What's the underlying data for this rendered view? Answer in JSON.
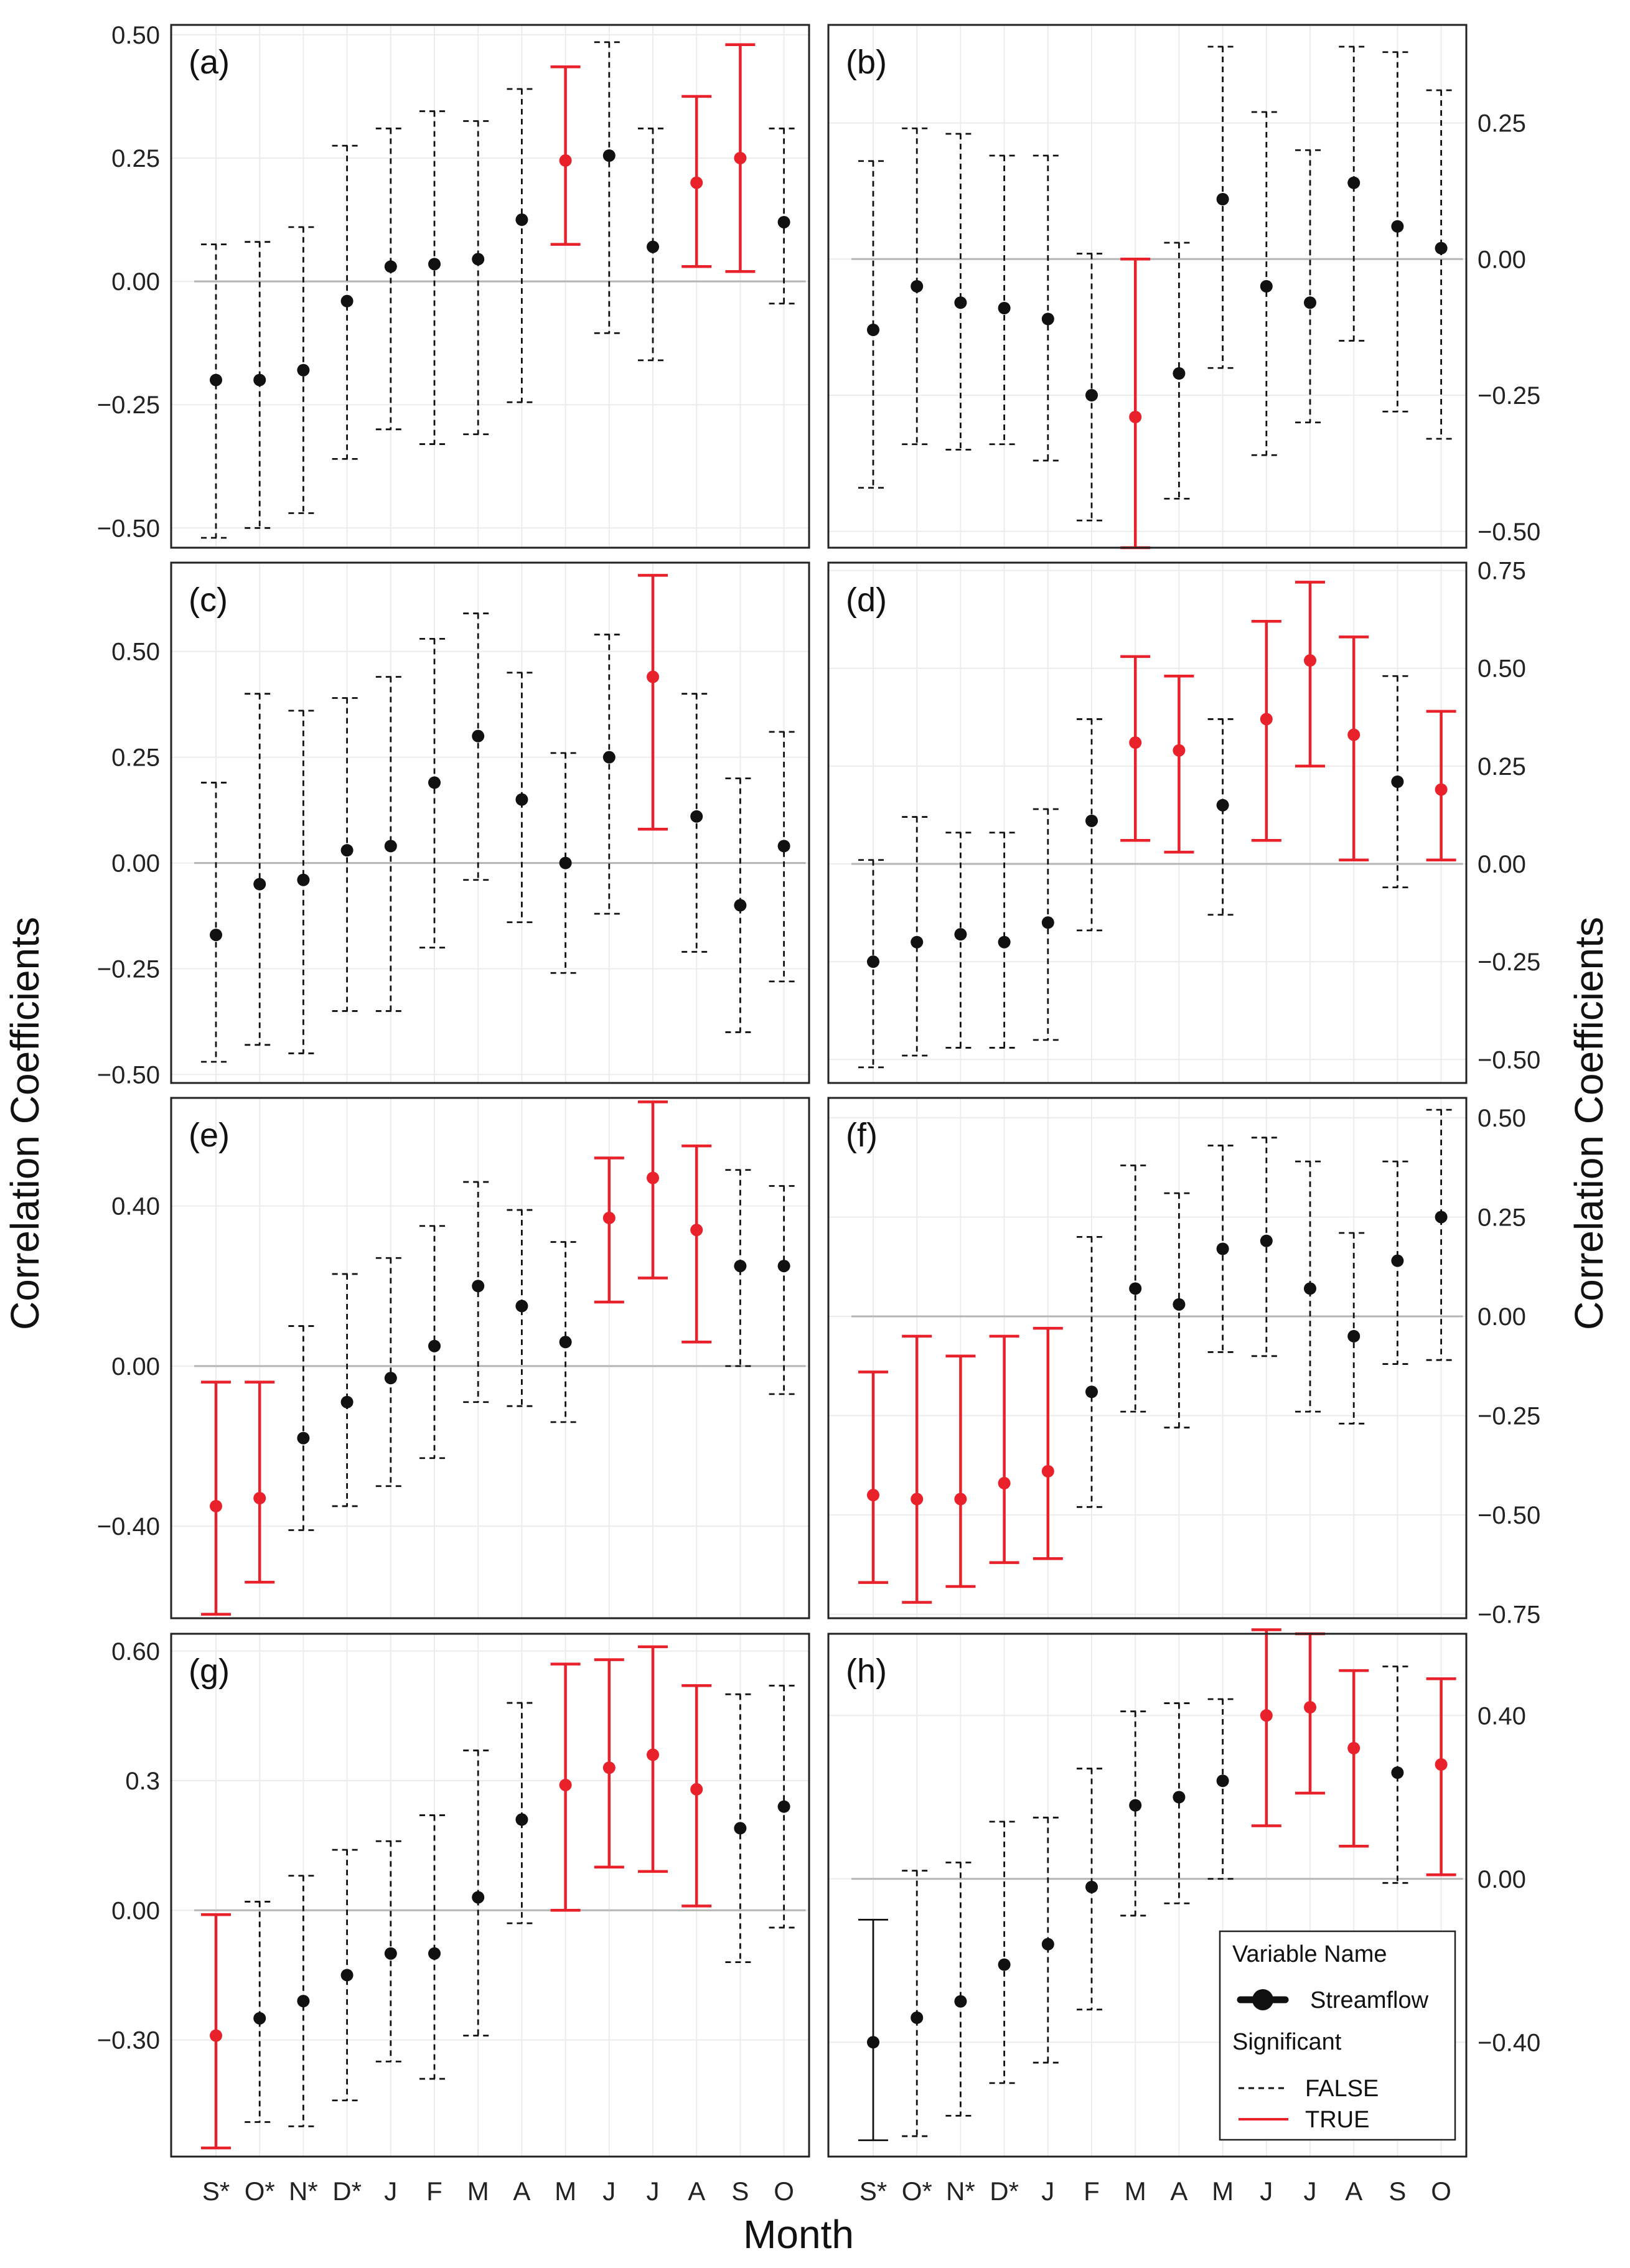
{
  "figure": {
    "y_axis_title_left": "Correlation Coefficients",
    "y_axis_title_right": "Correlation Coefficients",
    "x_axis_title": "Month"
  },
  "legend": {
    "title": "Variable Name",
    "variable": "Streamflow",
    "significance_title": "Significant",
    "false_label": "FALSE",
    "true_label": "TRUE",
    "false_color": "#111111",
    "true_color": "#e8212b"
  },
  "chart_data": [
    {
      "panel": "(a)",
      "type": "errorbar",
      "categories": [
        "S*",
        "O*",
        "N*",
        "D*",
        "J",
        "F",
        "M",
        "A",
        "M",
        "J",
        "J",
        "A",
        "S",
        "O"
      ],
      "ylim": [
        -0.54,
        0.52
      ],
      "yticks": [
        0.5,
        0.25,
        0.0,
        -0.25,
        -0.5
      ],
      "ytick_labels": [
        "0.50",
        "0.25",
        "0.00",
        "−0.25",
        "−0.50"
      ],
      "estimate": [
        -0.2,
        -0.2,
        -0.18,
        -0.04,
        0.03,
        0.035,
        0.045,
        0.125,
        0.245,
        0.255,
        0.07,
        0.2,
        0.25,
        0.12
      ],
      "lower": [
        -0.52,
        -0.5,
        -0.47,
        -0.36,
        -0.3,
        -0.33,
        -0.31,
        -0.245,
        0.075,
        -0.105,
        -0.16,
        0.03,
        0.02,
        -0.045
      ],
      "upper": [
        0.075,
        0.08,
        0.11,
        0.275,
        0.31,
        0.345,
        0.325,
        0.39,
        0.435,
        0.485,
        0.31,
        0.375,
        0.48,
        0.31
      ],
      "significant": [
        false,
        false,
        false,
        false,
        false,
        false,
        false,
        false,
        true,
        false,
        false,
        true,
        true,
        false
      ]
    },
    {
      "panel": "(b)",
      "type": "errorbar",
      "categories": [
        "S*",
        "O*",
        "N*",
        "D*",
        "J",
        "F",
        "M",
        "A",
        "M",
        "J",
        "J",
        "A",
        "S",
        "O"
      ],
      "ylim": [
        -0.53,
        0.43
      ],
      "yticks": [
        0.25,
        0.0,
        -0.25,
        -0.5
      ],
      "ytick_labels": [
        "0.25",
        "0.00",
        "−0.25",
        "−0.50"
      ],
      "estimate": [
        -0.13,
        -0.05,
        -0.08,
        -0.09,
        -0.11,
        -0.25,
        -0.29,
        -0.21,
        0.11,
        -0.05,
        -0.08,
        0.14,
        0.06,
        0.02
      ],
      "lower": [
        -0.42,
        -0.34,
        -0.35,
        -0.34,
        -0.37,
        -0.48,
        -0.53,
        -0.44,
        -0.2,
        -0.36,
        -0.3,
        -0.15,
        -0.28,
        -0.33
      ],
      "upper": [
        0.18,
        0.24,
        0.23,
        0.19,
        0.19,
        0.01,
        0.0,
        0.03,
        0.39,
        0.27,
        0.2,
        0.39,
        0.38,
        0.31
      ],
      "significant": [
        false,
        false,
        false,
        false,
        false,
        false,
        true,
        false,
        false,
        false,
        false,
        false,
        false,
        false
      ]
    },
    {
      "panel": "(c)",
      "type": "errorbar",
      "categories": [
        "S*",
        "O*",
        "N*",
        "D*",
        "J",
        "F",
        "M",
        "A",
        "M",
        "J",
        "J",
        "A",
        "S",
        "O"
      ],
      "ylim": [
        -0.52,
        0.71
      ],
      "yticks": [
        0.5,
        0.25,
        0.0,
        -0.25,
        -0.5
      ],
      "ytick_labels": [
        "0.50",
        "0.25",
        "0.00",
        "−0.25",
        "−0.50"
      ],
      "estimate": [
        -0.17,
        -0.05,
        -0.04,
        0.03,
        0.04,
        0.19,
        0.3,
        0.15,
        0.0,
        0.25,
        0.44,
        0.11,
        -0.1,
        0.04
      ],
      "lower": [
        -0.47,
        -0.43,
        -0.45,
        -0.35,
        -0.35,
        -0.2,
        -0.04,
        -0.14,
        -0.26,
        -0.12,
        0.08,
        -0.21,
        -0.4,
        -0.28
      ],
      "upper": [
        0.19,
        0.4,
        0.36,
        0.39,
        0.44,
        0.53,
        0.59,
        0.45,
        0.26,
        0.54,
        0.68,
        0.4,
        0.2,
        0.31
      ],
      "significant": [
        false,
        false,
        false,
        false,
        false,
        false,
        false,
        false,
        false,
        false,
        true,
        false,
        false,
        false
      ]
    },
    {
      "panel": "(d)",
      "type": "errorbar",
      "categories": [
        "S*",
        "O*",
        "N*",
        "D*",
        "J",
        "F",
        "M",
        "A",
        "M",
        "J",
        "J",
        "A",
        "S",
        "O"
      ],
      "ylim": [
        -0.56,
        0.77
      ],
      "yticks": [
        0.75,
        0.5,
        0.25,
        0.0,
        -0.25,
        -0.5
      ],
      "ytick_labels": [
        "0.75",
        "0.50",
        "0.25",
        "0.00",
        "−0.25",
        "−0.50"
      ],
      "estimate": [
        -0.25,
        -0.2,
        -0.18,
        -0.2,
        -0.15,
        0.11,
        0.31,
        0.29,
        0.15,
        0.37,
        0.52,
        0.33,
        0.21,
        0.19
      ],
      "lower": [
        -0.52,
        -0.49,
        -0.47,
        -0.47,
        -0.45,
        -0.17,
        0.06,
        0.03,
        -0.13,
        0.06,
        0.25,
        0.01,
        -0.06,
        0.01
      ],
      "upper": [
        0.01,
        0.12,
        0.08,
        0.08,
        0.14,
        0.37,
        0.53,
        0.48,
        0.37,
        0.62,
        0.72,
        0.58,
        0.48,
        0.39
      ],
      "significant": [
        false,
        false,
        false,
        false,
        false,
        false,
        true,
        true,
        false,
        true,
        true,
        true,
        false,
        true
      ]
    },
    {
      "panel": "(e)",
      "type": "errorbar",
      "categories": [
        "S*",
        "O*",
        "N*",
        "D*",
        "J",
        "F",
        "M",
        "A",
        "M",
        "J",
        "J",
        "A",
        "S",
        "O"
      ],
      "ylim": [
        -0.63,
        0.67
      ],
      "yticks": [
        0.4,
        0.0,
        -0.4
      ],
      "ytick_labels": [
        "0.40",
        "0.00",
        "−0.40"
      ],
      "estimate": [
        -0.35,
        -0.33,
        -0.18,
        -0.09,
        -0.03,
        0.05,
        0.2,
        0.15,
        0.06,
        0.37,
        0.47,
        0.34,
        0.25,
        0.25
      ],
      "lower": [
        -0.62,
        -0.54,
        -0.41,
        -0.35,
        -0.3,
        -0.23,
        -0.09,
        -0.1,
        -0.14,
        0.16,
        0.22,
        0.06,
        0.0,
        -0.07
      ],
      "upper": [
        -0.04,
        -0.04,
        0.1,
        0.23,
        0.27,
        0.35,
        0.46,
        0.39,
        0.31,
        0.52,
        0.66,
        0.55,
        0.49,
        0.45
      ],
      "significant": [
        true,
        true,
        false,
        false,
        false,
        false,
        false,
        false,
        false,
        true,
        true,
        true,
        false,
        false
      ]
    },
    {
      "panel": "(f)",
      "type": "errorbar",
      "categories": [
        "S*",
        "O*",
        "N*",
        "D*",
        "J",
        "F",
        "M",
        "A",
        "M",
        "J",
        "J",
        "A",
        "S",
        "O"
      ],
      "ylim": [
        -0.76,
        0.55
      ],
      "yticks": [
        0.5,
        0.25,
        0.0,
        -0.25,
        -0.5,
        -0.75
      ],
      "ytick_labels": [
        "0.50",
        "0.25",
        "0.00",
        "−0.25",
        "−0.50",
        "−0.75"
      ],
      "estimate": [
        -0.45,
        -0.46,
        -0.46,
        -0.42,
        -0.39,
        -0.19,
        0.07,
        0.03,
        0.17,
        0.19,
        0.07,
        -0.05,
        0.14,
        0.25
      ],
      "lower": [
        -0.67,
        -0.72,
        -0.68,
        -0.62,
        -0.61,
        -0.48,
        -0.24,
        -0.28,
        -0.09,
        -0.1,
        -0.24,
        -0.27,
        -0.12,
        -0.11
      ],
      "upper": [
        -0.14,
        -0.05,
        -0.1,
        -0.05,
        -0.03,
        0.2,
        0.38,
        0.31,
        0.43,
        0.45,
        0.39,
        0.21,
        0.39,
        0.52
      ],
      "significant": [
        true,
        true,
        true,
        true,
        true,
        false,
        false,
        false,
        false,
        false,
        false,
        false,
        false,
        false
      ]
    },
    {
      "panel": "(g)",
      "type": "errorbar",
      "categories": [
        "S*",
        "O*",
        "N*",
        "D*",
        "J",
        "F",
        "M",
        "A",
        "M",
        "J",
        "J",
        "A",
        "S",
        "O"
      ],
      "ylim": [
        -0.57,
        0.64
      ],
      "yticks": [
        0.6,
        0.3,
        0.0,
        -0.3
      ],
      "ytick_labels": [
        "0.60",
        "0.3",
        "0.00",
        "−0.30"
      ],
      "estimate": [
        -0.29,
        -0.25,
        -0.21,
        -0.15,
        -0.1,
        -0.1,
        0.03,
        0.21,
        0.29,
        0.33,
        0.36,
        0.28,
        0.19,
        0.24
      ],
      "lower": [
        -0.55,
        -0.49,
        -0.5,
        -0.44,
        -0.35,
        -0.39,
        -0.29,
        -0.03,
        0.0,
        0.1,
        0.09,
        0.01,
        -0.12,
        -0.04
      ],
      "upper": [
        -0.01,
        0.02,
        0.08,
        0.14,
        0.16,
        0.22,
        0.37,
        0.48,
        0.57,
        0.58,
        0.61,
        0.52,
        0.5,
        0.52
      ],
      "significant": [
        true,
        false,
        false,
        false,
        false,
        false,
        false,
        false,
        true,
        true,
        true,
        true,
        false,
        false
      ]
    },
    {
      "panel": "(h)",
      "type": "errorbar",
      "categories": [
        "S*",
        "O*",
        "N*",
        "D*",
        "J",
        "F",
        "M",
        "A",
        "M",
        "J",
        "J",
        "A",
        "S",
        "O"
      ],
      "ylim": [
        -0.68,
        0.6
      ],
      "yticks": [
        0.4,
        0.0,
        -0.4
      ],
      "ytick_labels": [
        "0.40",
        "0.00",
        "−0.40"
      ],
      "estimate": [
        -0.4,
        -0.34,
        -0.3,
        -0.21,
        -0.16,
        -0.02,
        0.18,
        0.2,
        0.24,
        0.4,
        0.42,
        0.32,
        0.26,
        0.28
      ],
      "lower": [
        -0.64,
        -0.63,
        -0.58,
        -0.5,
        -0.45,
        -0.32,
        -0.09,
        -0.06,
        0.0,
        0.13,
        0.21,
        0.08,
        -0.01,
        0.01
      ],
      "upper": [
        -0.1,
        0.02,
        0.04,
        0.14,
        0.15,
        0.27,
        0.41,
        0.43,
        0.44,
        0.61,
        0.6,
        0.51,
        0.52,
        0.49
      ],
      "significant": [
        false,
        false,
        false,
        false,
        false,
        false,
        false,
        false,
        false,
        true,
        true,
        true,
        false,
        true
      ],
      "note_first_bar_solid_black": true
    }
  ]
}
